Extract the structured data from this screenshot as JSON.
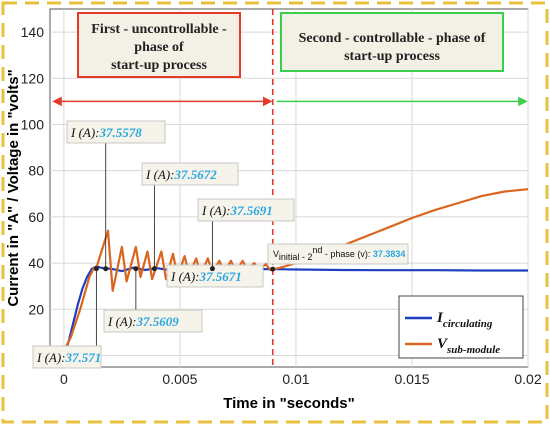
{
  "chart_data": {
    "type": "line",
    "xlabel": "Time in \"seconds\"",
    "ylabel": "Current in \"A\" / Voltage in \"volts\"",
    "xlim": [
      -0.0006,
      0.02
    ],
    "ylim": [
      -5,
      150
    ],
    "x_ticks": [
      0,
      0.005,
      0.01,
      0.015,
      0.02
    ],
    "x_tick_labels": [
      "0",
      "0.005",
      "0.01",
      "0.015",
      "0.02"
    ],
    "y_ticks": [
      0,
      20,
      40,
      60,
      80,
      100,
      120,
      140
    ],
    "y_tick_labels": [
      "0",
      "20",
      "40",
      "60",
      "80",
      "100",
      "120",
      "140"
    ],
    "grid": true,
    "legend_position": "bottom-right",
    "series": [
      {
        "name": "I circulating",
        "label_main": "I",
        "label_sub": "circulating",
        "color": "#1f3fbf",
        "x": [
          0,
          0.0002,
          0.0004,
          0.0006,
          0.0008,
          0.001,
          0.0012,
          0.0014,
          0.0016,
          0.0018,
          0.002,
          0.0025,
          0.003,
          0.0035,
          0.004,
          0.0045,
          0.005,
          0.0055,
          0.006,
          0.0065,
          0.007,
          0.0075,
          0.008,
          0.0085,
          0.009,
          0.0095,
          0.01,
          0.012,
          0.014,
          0.016,
          0.018,
          0.02
        ],
        "y": [
          0,
          6,
          14,
          22,
          29,
          34,
          37.5,
          38.5,
          38,
          37.5,
          37.6,
          36.5,
          38,
          37,
          37.8,
          37,
          37.6,
          37.2,
          37.5,
          37.3,
          37.5,
          37.4,
          37.4,
          37.4,
          37.4,
          37.3,
          37.2,
          37,
          36.9,
          36.9,
          36.8,
          36.8
        ]
      },
      {
        "name": "V sub-module",
        "label_main": "V",
        "label_sub": "sub-module",
        "color": "#d9651e",
        "x": [
          0,
          0.0001,
          0.0003,
          0.0005,
          0.0007,
          0.0009,
          0.0011,
          0.0013,
          0.0014,
          0.0019,
          0.0021,
          0.0025,
          0.0027,
          0.0031,
          0.0033,
          0.0036,
          0.0038,
          0.0042,
          0.0044,
          0.0047,
          0.0049,
          0.0052,
          0.0054,
          0.0057,
          0.0059,
          0.0062,
          0.0064,
          0.0067,
          0.0069,
          0.0072,
          0.0074,
          0.0077,
          0.0079,
          0.0082,
          0.0084,
          0.0087,
          0.0089,
          0.0091,
          0.0095,
          0.01,
          0.011,
          0.012,
          0.013,
          0.014,
          0.015,
          0.016,
          0.017,
          0.018,
          0.019,
          0.02
        ],
        "y": [
          0,
          4,
          8,
          14,
          20,
          27,
          34,
          38,
          38,
          54,
          28,
          47,
          32,
          47,
          34,
          45,
          33,
          45,
          33,
          44,
          34,
          43,
          35,
          42,
          35,
          42,
          36,
          41,
          36,
          41,
          36,
          41,
          37,
          40,
          37,
          39.5,
          37,
          37.4,
          38.5,
          40,
          43.5,
          47.5,
          51.5,
          55.5,
          59.5,
          63,
          66,
          69,
          71,
          72
        ]
      }
    ],
    "phase_divider_x": 0.009,
    "phase_arrow_y": 110,
    "phases": [
      {
        "text_lines": [
          "First - uncontrollable -",
          "phase of",
          "start-up process"
        ],
        "border_color": "#e53a2a",
        "arrow_color": "#e53a2a"
      },
      {
        "text_lines": [
          "Second - controllable - phase of",
          "start-up process"
        ],
        "border_color": "#3ccf4b",
        "arrow_color": "#3ccf4b"
      }
    ],
    "annotations": [
      {
        "prefix": "I (A):",
        "value": "37.571",
        "point_x": 0.0014,
        "point_y": 37.571
      },
      {
        "prefix": "I (A):",
        "value": "37.5578",
        "point_x": 0.0018,
        "point_y": 37.5578
      },
      {
        "prefix": "I (A):",
        "value": "37.5609",
        "point_x": 0.0031,
        "point_y": 37.5609
      },
      {
        "prefix": "I (A):",
        "value": "37.5672",
        "point_x": 0.0039,
        "point_y": 37.5672
      },
      {
        "prefix": "I (A):",
        "value": "37.5671",
        "point_x": 0.0058,
        "point_y": 37.5671
      },
      {
        "prefix": "I (A):",
        "value": "37.5691",
        "point_x": 0.0064,
        "point_y": 37.5691
      }
    ],
    "v_annotation": {
      "prefix": "V",
      "sub": "initial - 2",
      "sup": "nd",
      "suffix": " - phase",
      "unit": " (v): ",
      "value": "37.3834",
      "point_x": 0.009,
      "point_y": 37.3834
    }
  }
}
